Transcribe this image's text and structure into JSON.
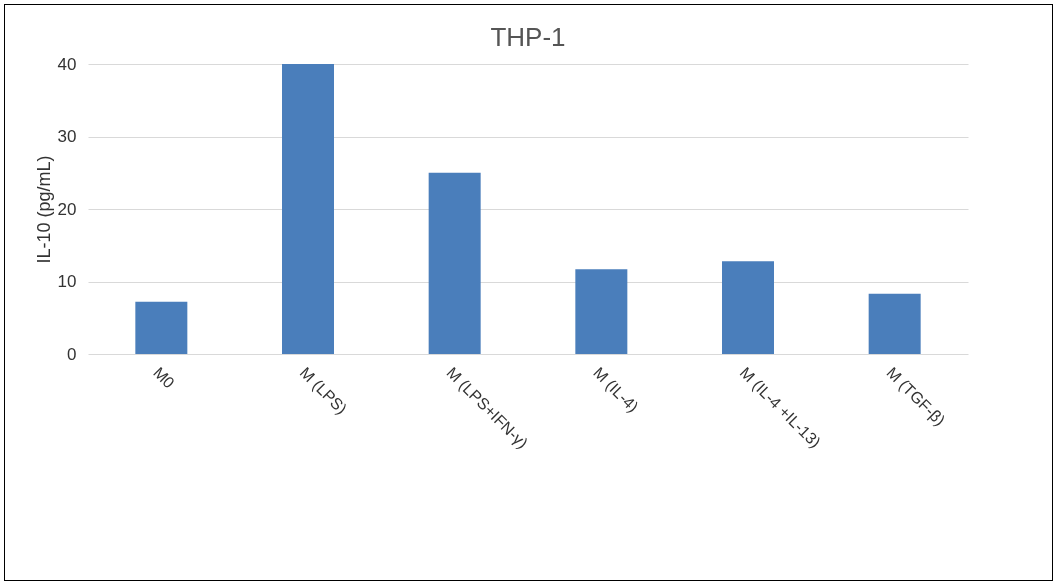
{
  "chart_data": {
    "type": "bar",
    "title": "THP-1",
    "ylabel": "IL-10 (pg/mL)",
    "categories": [
      "M0",
      "M (LPS)",
      "M (LPS+IFN-γ)",
      "M (IL-4)",
      "M (IL-4 +IL-13)",
      "M (TGF-β)"
    ],
    "values": [
      7.2,
      40,
      25,
      11.7,
      12.8,
      8.3
    ],
    "color": "#4a7ebb",
    "ylim": [
      0,
      40
    ],
    "yticks": [
      0,
      10,
      20,
      30,
      40
    ],
    "grid": "y"
  }
}
